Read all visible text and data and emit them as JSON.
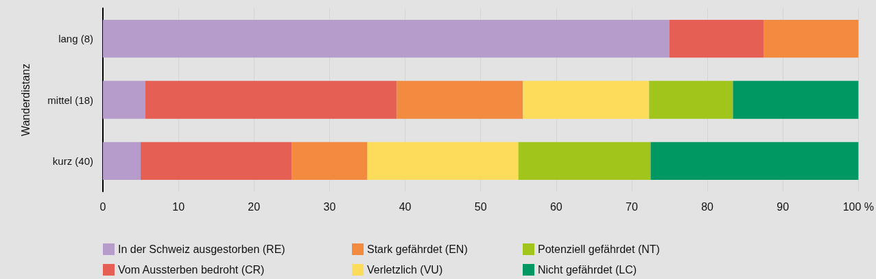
{
  "chart_data": {
    "type": "bar",
    "orientation": "horizontal",
    "stacked": true,
    "ylabel": "Wanderdistanz",
    "categories": [
      "lang (8)",
      "mittel (18)",
      "kurz (40)"
    ],
    "series": [
      {
        "name": "In der Schweiz ausgestorben (RE)",
        "color": "#b59ccb",
        "values": [
          75,
          5.6,
          5
        ]
      },
      {
        "name": "Vom Aussterben bedroht (CR)",
        "color": "#e65f55",
        "values": [
          12.5,
          33.3,
          20
        ]
      },
      {
        "name": "Stark gefährdet (EN)",
        "color": "#f28a3f",
        "values": [
          12.5,
          16.7,
          10
        ]
      },
      {
        "name": "Verletzlich (VU)",
        "color": "#fddc5c",
        "values": [
          null,
          16.7,
          20
        ]
      },
      {
        "name": "Potenziell gefährdet (NT)",
        "color": "#a2c51b",
        "values": [
          null,
          11.1,
          17.5
        ]
      },
      {
        "name": "Nicht gefährdet (LC)",
        "color": "#009862",
        "values": [
          null,
          16.7,
          27.5
        ]
      }
    ],
    "xlim": [
      0,
      100
    ],
    "xticks": [
      0,
      10,
      20,
      30,
      40,
      50,
      60,
      70,
      80,
      90,
      {
        "value": 100,
        "label": "100 %"
      }
    ],
    "grid": "x",
    "legend": "bottom"
  }
}
